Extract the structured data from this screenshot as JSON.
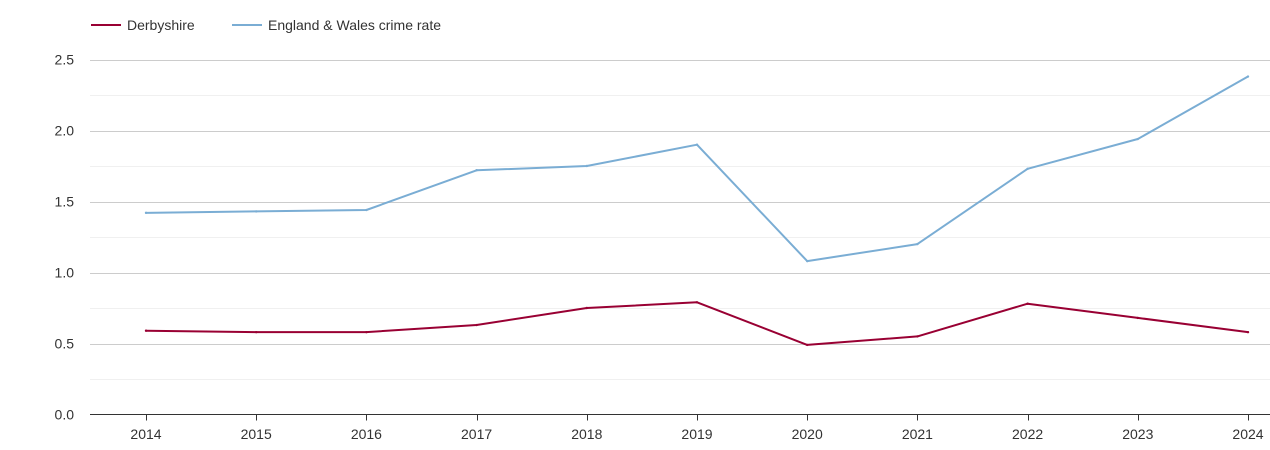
{
  "chart_data": {
    "type": "line",
    "x": [
      "2014",
      "2015",
      "2016",
      "2017",
      "2018",
      "2019",
      "2020",
      "2021",
      "2022",
      "2023",
      "2024"
    ],
    "series": [
      {
        "name": "Derbyshire",
        "color": "#990033",
        "values": [
          0.59,
          0.58,
          0.58,
          0.63,
          0.75,
          0.79,
          0.49,
          0.55,
          0.78,
          0.68,
          0.58
        ]
      },
      {
        "name": "England & Wales crime rate",
        "color": "#7aadd4",
        "values": [
          1.42,
          1.43,
          1.44,
          1.72,
          1.75,
          1.9,
          1.08,
          1.2,
          1.73,
          1.94,
          2.38
        ]
      }
    ],
    "y_ticks": [
      "0.0",
      "0.5",
      "1.0",
      "1.5",
      "2.0",
      "2.5"
    ],
    "ylim": [
      0,
      2.5
    ],
    "grid": true,
    "minor_grid": true,
    "legend_position": "top-left"
  }
}
